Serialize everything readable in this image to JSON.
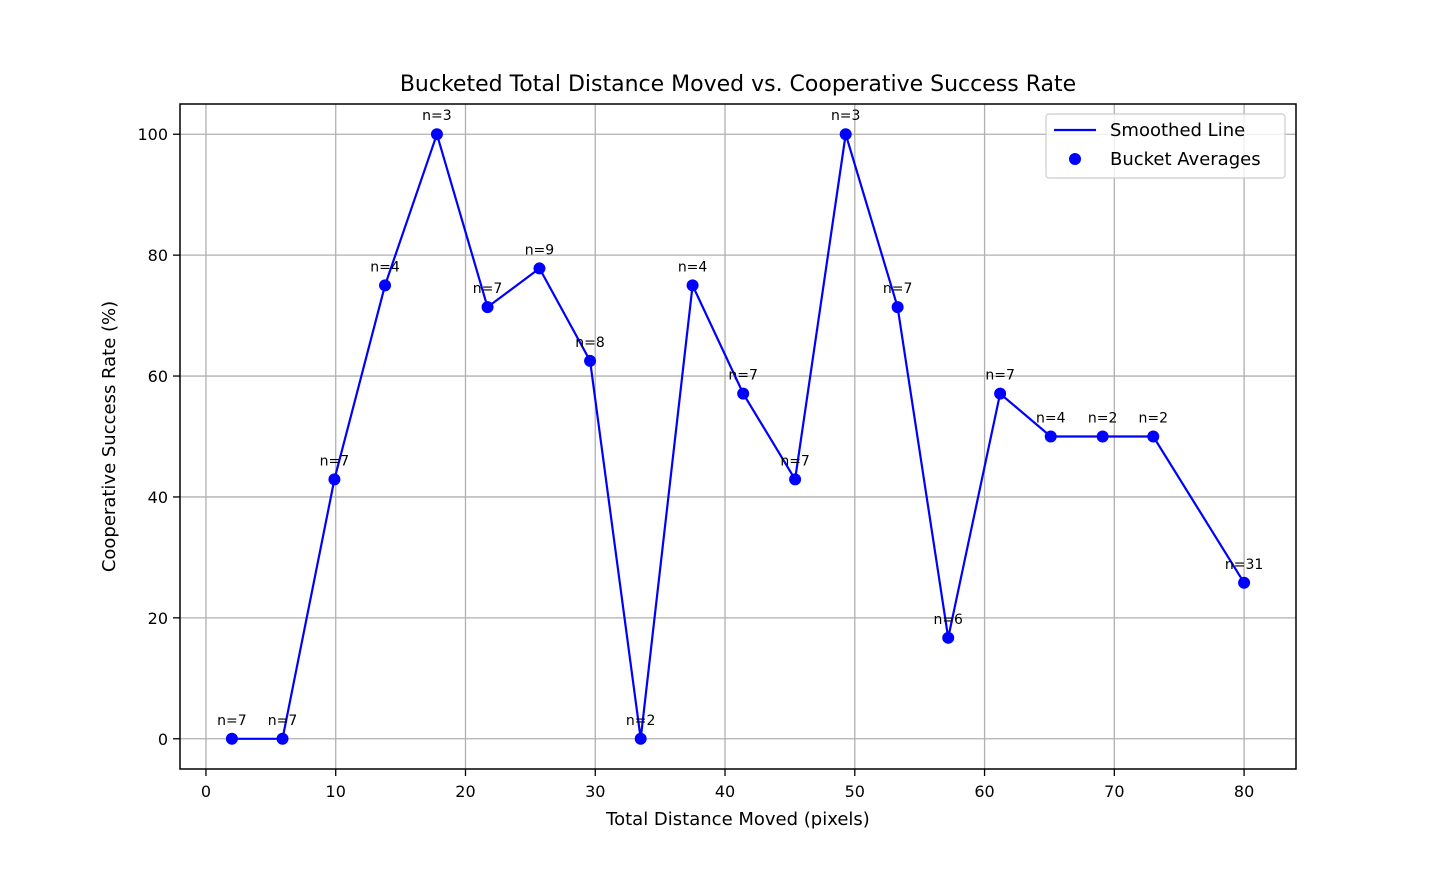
{
  "chart_data": {
    "type": "line",
    "title": "Bucketed Total Distance Moved vs. Cooperative Success Rate",
    "xlabel": "Total Distance Moved (pixels)",
    "ylabel": "Cooperative Success Rate (%)",
    "xlim": [
      -2,
      84
    ],
    "ylim": [
      -5,
      105
    ],
    "xticks": [
      0,
      10,
      20,
      30,
      40,
      50,
      60,
      70,
      80
    ],
    "yticks": [
      0,
      20,
      40,
      60,
      80,
      100
    ],
    "grid": true,
    "legend_position": "top-right",
    "series": [
      {
        "name": "Smoothed Line",
        "kind": "line",
        "color": "#0000ff"
      },
      {
        "name": "Bucket Averages",
        "kind": "scatter",
        "color": "#0000ff",
        "points": [
          {
            "x": 2.0,
            "y": 0.0,
            "label": "n=7"
          },
          {
            "x": 5.9,
            "y": 0.0,
            "label": "n=7"
          },
          {
            "x": 9.9,
            "y": 42.9,
            "label": "n=7"
          },
          {
            "x": 13.8,
            "y": 75.0,
            "label": "n=4"
          },
          {
            "x": 17.8,
            "y": 100.0,
            "label": "n=3"
          },
          {
            "x": 21.7,
            "y": 71.4,
            "label": "n=7"
          },
          {
            "x": 25.7,
            "y": 77.8,
            "label": "n=9"
          },
          {
            "x": 29.6,
            "y": 62.5,
            "label": "n=8"
          },
          {
            "x": 33.5,
            "y": 0.0,
            "label": "n=2"
          },
          {
            "x": 37.5,
            "y": 75.0,
            "label": "n=4"
          },
          {
            "x": 41.4,
            "y": 57.1,
            "label": "n=7"
          },
          {
            "x": 45.4,
            "y": 42.9,
            "label": "n=7"
          },
          {
            "x": 49.3,
            "y": 100.0,
            "label": "n=3"
          },
          {
            "x": 53.3,
            "y": 71.4,
            "label": "n=7"
          },
          {
            "x": 57.2,
            "y": 16.7,
            "label": "n=6"
          },
          {
            "x": 61.2,
            "y": 57.1,
            "label": "n=7"
          },
          {
            "x": 65.1,
            "y": 50.0,
            "label": "n=4"
          },
          {
            "x": 69.1,
            "y": 50.0,
            "label": "n=2"
          },
          {
            "x": 73.0,
            "y": 50.0,
            "label": "n=2"
          },
          {
            "x": 80.0,
            "y": 25.8,
            "label": "n=31"
          }
        ]
      }
    ]
  }
}
